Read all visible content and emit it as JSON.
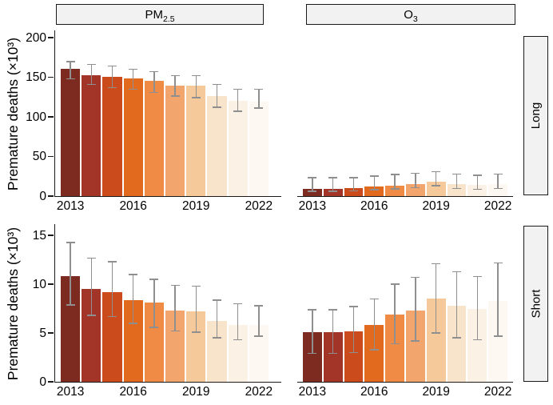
{
  "figure": {
    "ylabel": "Premature deaths (×10³)",
    "col_strips": [
      {
        "base": "PM",
        "sub": "2.5"
      },
      {
        "base": "O",
        "sub": "3"
      }
    ],
    "row_strips": [
      "Long",
      "Short"
    ],
    "palette": [
      "#7d2a21",
      "#a23528",
      "#cb4b1d",
      "#e26a1e",
      "#f08b45",
      "#f2a56d",
      "#f6c99a",
      "#f8e3cb",
      "#fcf1e5",
      "#fef8f2"
    ],
    "colors": {
      "errorbar": "#8f8f8f",
      "axis": "#1a1a1a",
      "strip_bg": "#f2f2f2",
      "strip_border": "#1a1a1a",
      "text": "#000000"
    }
  },
  "chart_data": [
    {
      "type": "bar",
      "facet_col": "PM2.5",
      "facet_row": "Long",
      "row": 0,
      "col": 0,
      "x": [
        "2013",
        "2014",
        "2015",
        "2016",
        "2017",
        "2018",
        "2019",
        "2020",
        "2021",
        "2022"
      ],
      "values": [
        161,
        153,
        151,
        148,
        145,
        139,
        139,
        126,
        120,
        119
      ],
      "err_low": [
        148,
        141,
        137,
        135,
        131,
        126,
        124,
        112,
        107,
        111
      ],
      "err_high": [
        170,
        166,
        164,
        160,
        157,
        152,
        152,
        141,
        135,
        135
      ],
      "ylim": [
        0,
        200
      ],
      "yticks": [
        0,
        50,
        100,
        150,
        200
      ],
      "xticks_shown": [
        "2013",
        "2016",
        "2019",
        "2022"
      ],
      "xtick_idx": [
        0,
        3,
        6,
        9
      ],
      "ylabel": "Premature deaths (×10³)"
    },
    {
      "type": "bar",
      "facet_col": "O3",
      "facet_row": "Long",
      "row": 0,
      "col": 1,
      "x": [
        "2013",
        "2014",
        "2015",
        "2016",
        "2017",
        "2018",
        "2019",
        "2020",
        "2021",
        "2022"
      ],
      "values": [
        9,
        9.5,
        10,
        12,
        13,
        15.5,
        18,
        15.5,
        14.5,
        15.5
      ],
      "err_low": [
        6,
        6,
        6.5,
        8,
        9,
        10.5,
        13,
        9.5,
        8.5,
        9.5
      ],
      "err_high": [
        23,
        23.5,
        23.5,
        25,
        27,
        29,
        31,
        28,
        26.5,
        28
      ],
      "ylim": [
        0,
        200
      ],
      "yticks": [
        0,
        50,
        100,
        150,
        200
      ],
      "xticks_shown": [
        "2013",
        "2016",
        "2019",
        "2022"
      ],
      "xtick_idx": [
        0,
        3,
        6,
        9
      ],
      "ylabel": "Premature deaths (×10³)"
    },
    {
      "type": "bar",
      "facet_col": "PM2.5",
      "facet_row": "Short",
      "row": 1,
      "col": 0,
      "x": [
        "2013",
        "2014",
        "2015",
        "2016",
        "2017",
        "2018",
        "2019",
        "2020",
        "2021",
        "2022"
      ],
      "values": [
        10.8,
        9.5,
        9.2,
        8.4,
        8.1,
        7.3,
        7.2,
        6.2,
        5.8,
        5.8
      ],
      "err_low": [
        7.9,
        6.8,
        6.7,
        6.0,
        5.6,
        5.2,
        5.1,
        4.5,
        4.3,
        4.7
      ],
      "err_high": [
        14.3,
        12.7,
        12.3,
        11.0,
        10.5,
        9.9,
        9.8,
        8.4,
        8.0,
        7.8
      ],
      "ylim": [
        0,
        15
      ],
      "yticks": [
        0,
        5,
        10,
        15
      ],
      "xticks_shown": [
        "2013",
        "2016",
        "2019",
        "2022"
      ],
      "xtick_idx": [
        0,
        3,
        6,
        9
      ],
      "ylabel": "Premature deaths (×10³)"
    },
    {
      "type": "bar",
      "facet_col": "O3",
      "facet_row": "Short",
      "row": 1,
      "col": 1,
      "x": [
        "2013",
        "2014",
        "2015",
        "2016",
        "2017",
        "2018",
        "2019",
        "2020",
        "2021",
        "2022"
      ],
      "values": [
        5.1,
        5.1,
        5.2,
        5.8,
        6.9,
        7.3,
        8.5,
        7.8,
        7.5,
        8.3
      ],
      "err_low": [
        2.9,
        2.9,
        3.0,
        3.3,
        3.9,
        4.2,
        5.0,
        4.5,
        4.3,
        4.7
      ],
      "err_high": [
        7.4,
        7.4,
        7.7,
        8.5,
        10.0,
        10.7,
        12.1,
        11.3,
        10.8,
        12.2
      ],
      "ylim": [
        0,
        15
      ],
      "yticks": [
        0,
        5,
        10,
        15
      ],
      "xticks_shown": [
        "2013",
        "2016",
        "2019",
        "2022"
      ],
      "xtick_idx": [
        0,
        3,
        6,
        9
      ],
      "ylabel": "Premature deaths (×10³)"
    }
  ]
}
